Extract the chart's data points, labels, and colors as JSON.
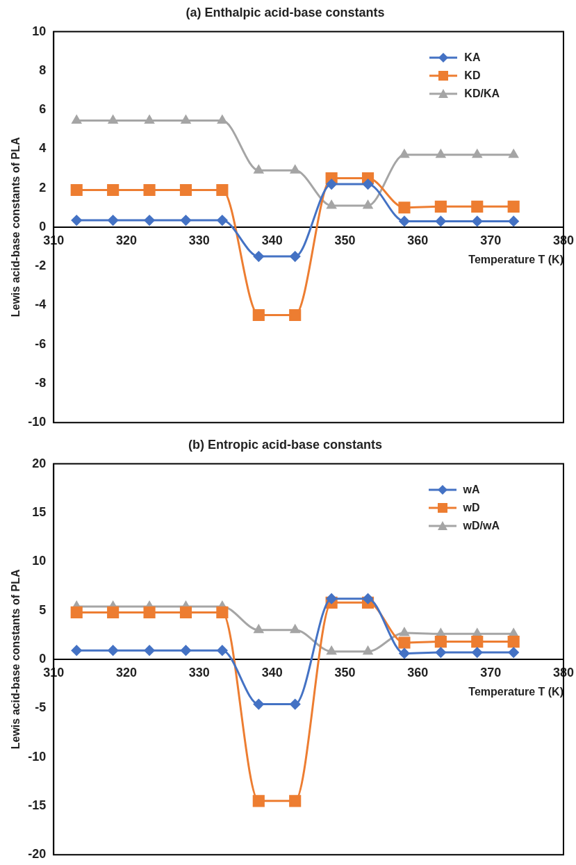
{
  "chart_data": [
    {
      "type": "line",
      "title": "(a) Enthalpic acid-base constants",
      "xlabel": "Temperature T (K)",
      "ylabel": "Lewis acid-base constants of PLA",
      "x": [
        313.15,
        318.15,
        323.15,
        328.15,
        333.15,
        338.15,
        343.15,
        348.15,
        353.15,
        358.15,
        363.15,
        368.15,
        373.15
      ],
      "series": [
        {
          "name": "KA",
          "color": "#4472c4",
          "marker": "diamond",
          "values": [
            0.35,
            0.35,
            0.35,
            0.35,
            0.35,
            -1.5,
            -1.5,
            2.2,
            2.2,
            0.3,
            0.3,
            0.3,
            0.3
          ]
        },
        {
          "name": "KD",
          "color": "#ed7d31",
          "marker": "square",
          "values": [
            1.9,
            1.9,
            1.9,
            1.9,
            1.9,
            -4.5,
            -4.5,
            2.5,
            2.5,
            1.0,
            1.05,
            1.05,
            1.05
          ]
        },
        {
          "name": "KD/KA",
          "color": "#a5a5a5",
          "marker": "triangle",
          "values": [
            5.45,
            5.45,
            5.45,
            5.45,
            5.45,
            2.9,
            2.9,
            1.1,
            1.1,
            3.7,
            3.7,
            3.7,
            3.7
          ]
        }
      ],
      "xlim": [
        310,
        380
      ],
      "xticks": [
        310,
        320,
        330,
        340,
        350,
        360,
        370,
        380
      ],
      "ylim": [
        -10,
        10
      ],
      "yticks": [
        -10,
        -8,
        -6,
        -4,
        -2,
        0,
        2,
        4,
        6,
        8,
        10
      ],
      "grid": false,
      "legend": "top right"
    },
    {
      "type": "line",
      "title": "(b) Entropic acid-base constants",
      "xlabel": "Temperature T (K)",
      "ylabel": "Lewis acid-base constants of PLA",
      "x": [
        313.15,
        318.15,
        323.15,
        328.15,
        333.15,
        338.15,
        343.15,
        348.15,
        353.15,
        358.15,
        363.15,
        368.15,
        373.15
      ],
      "series": [
        {
          "name": "wA",
          "color": "#4472c4",
          "marker": "diamond",
          "values": [
            0.9,
            0.9,
            0.9,
            0.9,
            0.9,
            -4.6,
            -4.6,
            6.2,
            6.2,
            0.6,
            0.7,
            0.7,
            0.7
          ]
        },
        {
          "name": "wD",
          "color": "#ed7d31",
          "marker": "square",
          "values": [
            4.8,
            4.8,
            4.8,
            4.8,
            4.8,
            -14.5,
            -14.5,
            5.8,
            5.8,
            1.7,
            1.8,
            1.8,
            1.8
          ]
        },
        {
          "name": "wD/wA",
          "color": "#a5a5a5",
          "marker": "triangle",
          "values": [
            5.4,
            5.4,
            5.4,
            5.4,
            5.4,
            3.0,
            3.0,
            0.8,
            0.8,
            2.7,
            2.6,
            2.6,
            2.6
          ]
        }
      ],
      "xlim": [
        310,
        380
      ],
      "xticks": [
        310,
        320,
        330,
        340,
        350,
        360,
        370,
        380
      ],
      "ylim": [
        -20,
        20
      ],
      "yticks": [
        -20,
        -15,
        -10,
        -5,
        0,
        5,
        10,
        15,
        20
      ],
      "grid": false,
      "legend": "top right"
    }
  ]
}
